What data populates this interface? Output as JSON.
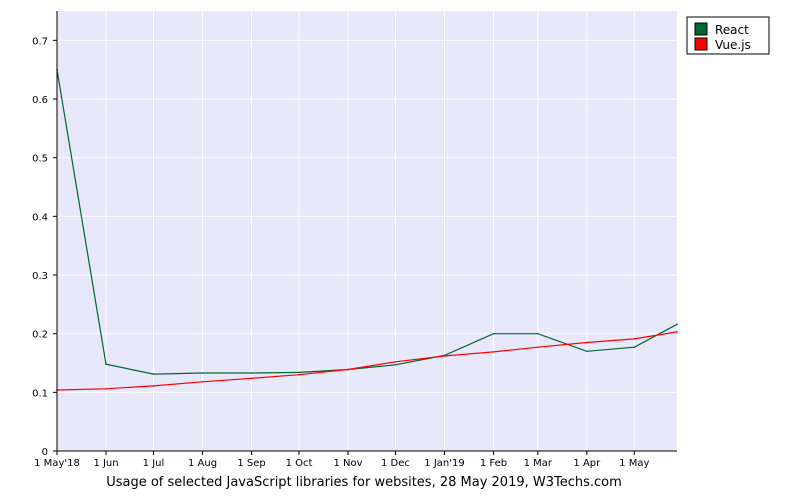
{
  "chart_data": {
    "type": "line",
    "caption": "Usage of selected JavaScript libraries for websites, 28 May 2019, W3Techs.com",
    "x_ticks": [
      "1 May'18",
      "1 Jun",
      "1 Jul",
      "1 Aug",
      "1 Sep",
      "1 Oct",
      "1 Nov",
      "1 Dec",
      "1 Jan'19",
      "1 Feb",
      "1 Mar",
      "1 Apr",
      "1 May"
    ],
    "x_range": [
      "2018-05-01",
      "2019-05-28"
    ],
    "ylim": [
      0,
      0.75
    ],
    "y_ticks": [
      0,
      0.1,
      0.2,
      0.3,
      0.4,
      0.5,
      0.6,
      0.7
    ],
    "grid": true,
    "legend_position": "top-right",
    "plot_background": "#e8e8fb",
    "series": [
      {
        "name": "React",
        "color": "#006633",
        "points": [
          {
            "x": "2018-05-01",
            "y": 0.65
          },
          {
            "x": "2018-06-01",
            "y": 0.148
          },
          {
            "x": "2018-07-01",
            "y": 0.131
          },
          {
            "x": "2018-08-01",
            "y": 0.133
          },
          {
            "x": "2018-09-01",
            "y": 0.133
          },
          {
            "x": "2018-10-01",
            "y": 0.134
          },
          {
            "x": "2018-11-01",
            "y": 0.139
          },
          {
            "x": "2018-12-01",
            "y": 0.147
          },
          {
            "x": "2019-01-01",
            "y": 0.163
          },
          {
            "x": "2019-02-01",
            "y": 0.2
          },
          {
            "x": "2019-03-01",
            "y": 0.2
          },
          {
            "x": "2019-04-01",
            "y": 0.17
          },
          {
            "x": "2019-05-01",
            "y": 0.177
          },
          {
            "x": "2019-05-28",
            "y": 0.216
          }
        ]
      },
      {
        "name": "Vue.js",
        "color": "#ff0000",
        "points": [
          {
            "x": "2018-05-01",
            "y": 0.104
          },
          {
            "x": "2018-06-01",
            "y": 0.106
          },
          {
            "x": "2018-07-01",
            "y": 0.111
          },
          {
            "x": "2018-08-01",
            "y": 0.118
          },
          {
            "x": "2018-09-01",
            "y": 0.124
          },
          {
            "x": "2018-10-01",
            "y": 0.13
          },
          {
            "x": "2018-11-01",
            "y": 0.139
          },
          {
            "x": "2018-12-01",
            "y": 0.152
          },
          {
            "x": "2019-01-01",
            "y": 0.162
          },
          {
            "x": "2019-02-01",
            "y": 0.169
          },
          {
            "x": "2019-03-01",
            "y": 0.177
          },
          {
            "x": "2019-04-01",
            "y": 0.185
          },
          {
            "x": "2019-05-01",
            "y": 0.191
          },
          {
            "x": "2019-05-28",
            "y": 0.203
          }
        ]
      }
    ]
  }
}
